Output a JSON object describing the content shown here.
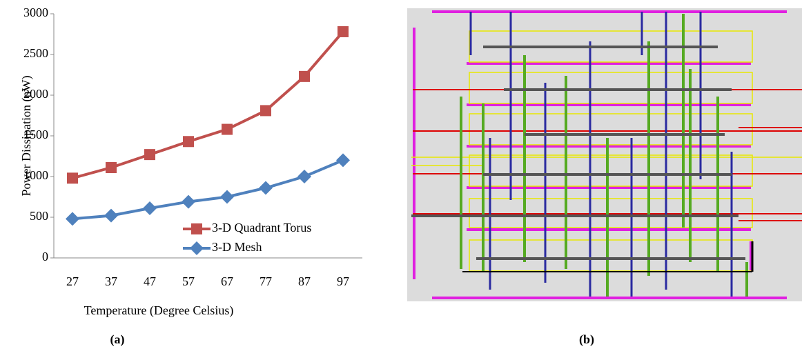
{
  "chart_data": {
    "type": "line",
    "y_label": "Power Dissipation (nW)",
    "x_label": "Temperature (Degree Celsius)",
    "categories": [
      "27",
      "37",
      "47",
      "57",
      "67",
      "77",
      "87",
      "97"
    ],
    "series": [
      {
        "name": "3-D Quadrant Torus",
        "color": "#c0504d",
        "marker": "square",
        "values": [
          980,
          1110,
          1270,
          1430,
          1580,
          1810,
          2230,
          2780
        ]
      },
      {
        "name": "3-D Mesh",
        "color": "#4f81bd",
        "marker": "diamond",
        "values": [
          480,
          520,
          610,
          690,
          750,
          860,
          1000,
          1200
        ]
      }
    ],
    "ylim": [
      0,
      3000
    ],
    "yticks": [
      0,
      500,
      1000,
      1500,
      2000,
      2500,
      3000
    ],
    "grid": false
  },
  "figure": {
    "captions": [
      "(a)",
      "(b)"
    ]
  }
}
